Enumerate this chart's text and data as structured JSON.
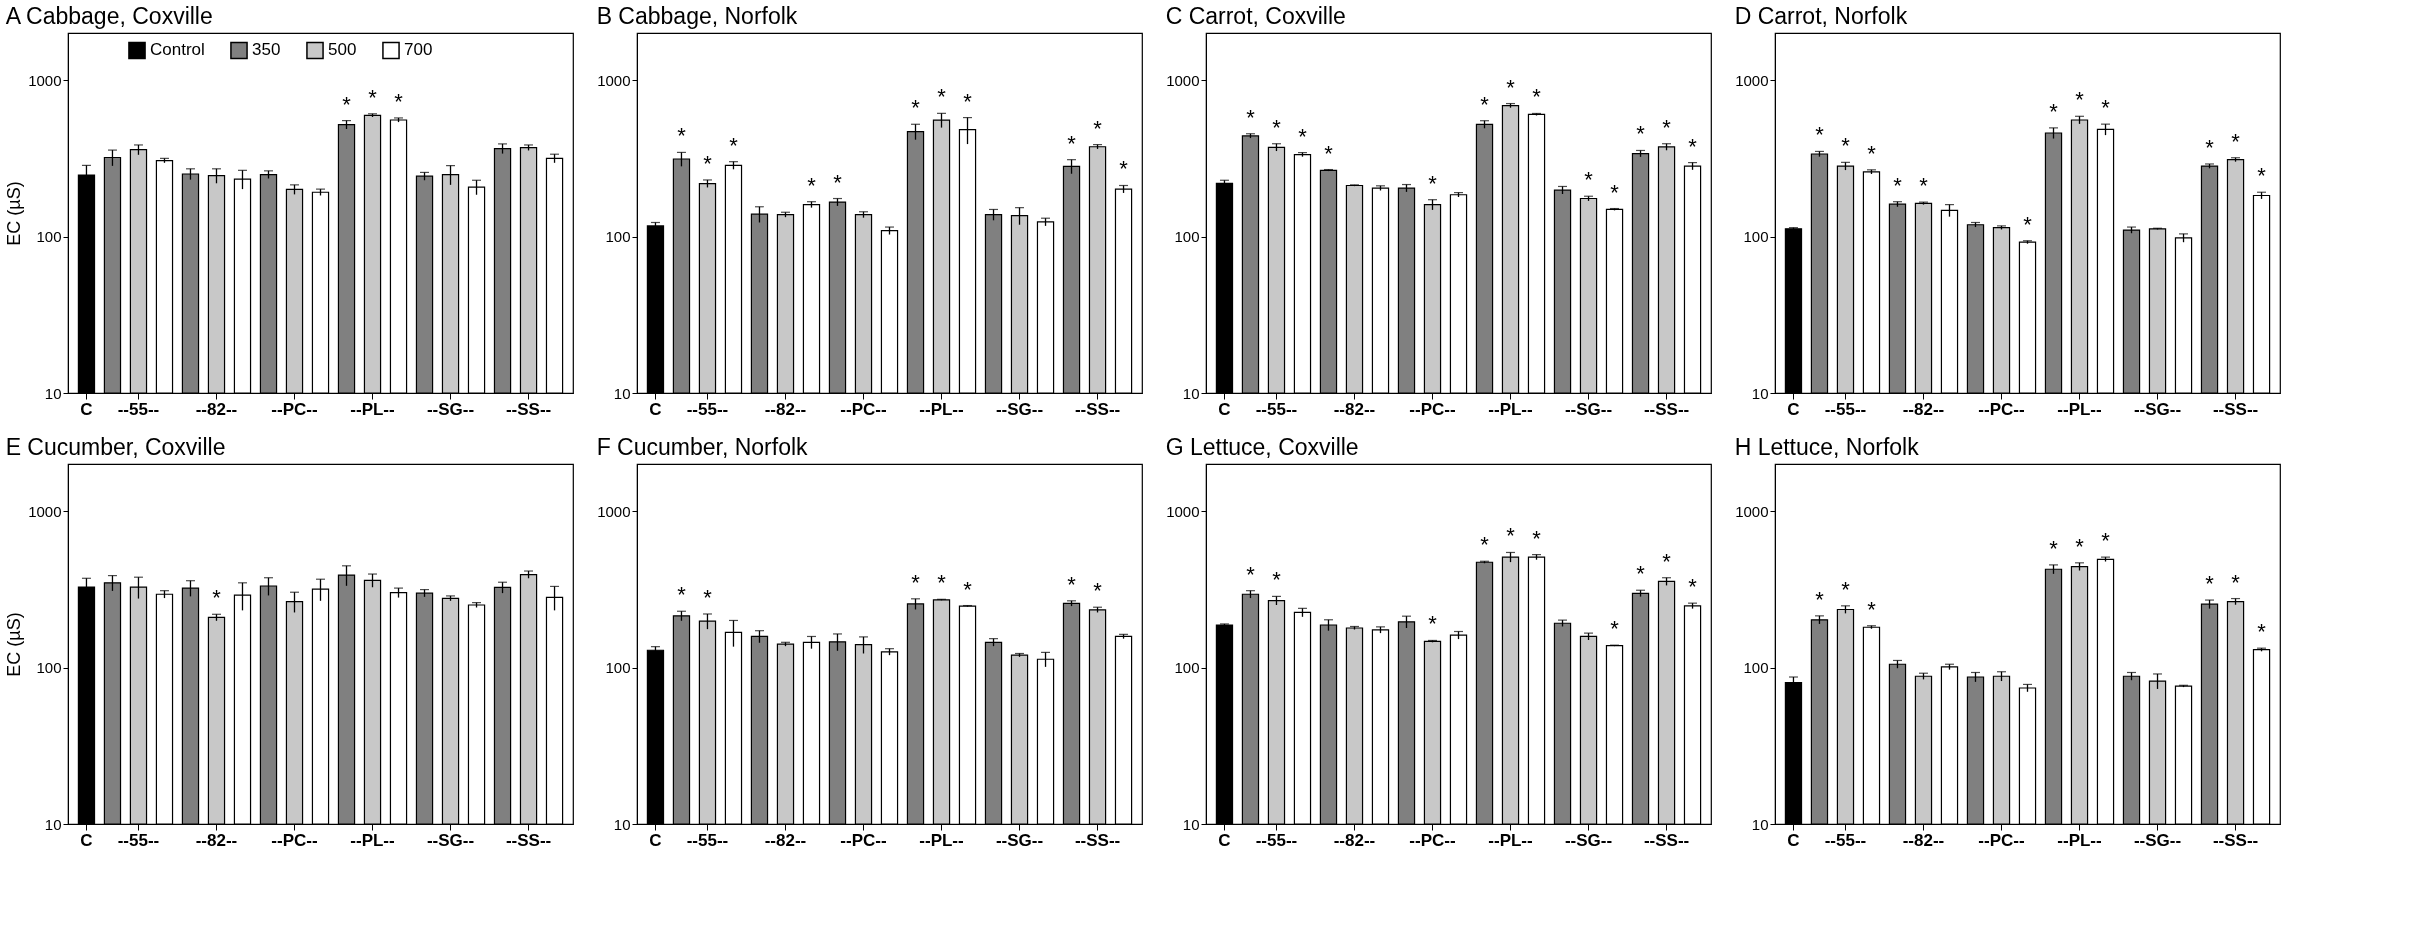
{
  "chart_data": [
    {
      "type": "bar",
      "title": "A Cabbage, Coxville",
      "ylabel": "EC (µS)",
      "log": true,
      "ylim": [
        10,
        2000
      ],
      "yticks": [
        10,
        100,
        1000
      ],
      "legend": "top",
      "categories": [
        "C",
        "--55--",
        "--82--",
        "--PC--",
        "--PL--",
        "--SG--",
        "--SS--"
      ],
      "series": [
        {
          "name": "Control",
          "color": "#000000",
          "values": [
            247,
            null,
            null,
            null,
            null,
            null,
            null
          ],
          "errors": [
            38,
            null,
            null,
            null,
            null,
            null,
            null
          ]
        },
        {
          "name": "350",
          "color": "#808080",
          "values": [
            null,
            320,
            251,
            249,
            519,
            243,
            365
          ],
          "errors": [
            null,
            37,
            20,
            14,
            32,
            14,
            26
          ],
          "value_labels": [
            null,
            null,
            null,
            null,
            "*",
            null,
            null
          ]
        },
        {
          "name": "500",
          "color": "#c8c8c8",
          "values": [
            null,
            359,
            245,
            200,
            595,
            249,
            370
          ],
          "errors": [
            null,
            26,
            26,
            14,
            14,
            35,
            15
          ],
          "value_labels": [
            null,
            null,
            null,
            null,
            "*",
            null,
            null
          ]
        },
        {
          "name": "700",
          "color": "#ffffff",
          "values": [
            null,
            306,
            233,
            192,
            556,
            207,
            316
          ],
          "errors": [
            null,
            10,
            32,
            9,
            17,
            22,
            20
          ],
          "value_labels": [
            null,
            null,
            null,
            null,
            "*",
            null,
            null
          ]
        }
      ]
    },
    {
      "type": "bar",
      "title": "B Cabbage, Norfolk",
      "log": true,
      "ylim": [
        10,
        2000
      ],
      "yticks": [
        10,
        100,
        1000
      ],
      "categories": [
        "C",
        "--55--",
        "--82--",
        "--PC--",
        "--PL--",
        "--SG--",
        "--SS--"
      ],
      "series": [
        {
          "color": "#000000",
          "values": [
            117,
            null,
            null,
            null,
            null,
            null,
            null
          ],
          "errors": [
            6,
            null,
            null,
            null,
            null,
            null,
            null
          ]
        },
        {
          "color": "#808080",
          "values": [
            null,
            313,
            139,
            166,
            469,
            138,
            281
          ],
          "errors": [
            null,
            32,
            16,
            9,
            53,
            11,
            29
          ],
          "value_labels": [
            null,
            "*",
            null,
            "*",
            "*",
            null,
            "*"
          ]
        },
        {
          "color": "#c8c8c8",
          "values": [
            null,
            218,
            138,
            138,
            555,
            136,
            375
          ],
          "errors": [
            null,
            12,
            5,
            6,
            58,
            17,
            12
          ],
          "value_labels": [
            null,
            "*",
            null,
            null,
            "*",
            null,
            "*"
          ]
        },
        {
          "color": "#ffffff",
          "values": [
            null,
            285,
            160,
            109,
            483,
            124,
            201
          ],
          "errors": [
            null,
            16,
            7,
            6,
            93,
            7,
            11
          ],
          "value_labels": [
            null,
            "*",
            "*",
            null,
            "*",
            null,
            "*"
          ]
        }
      ]
    },
    {
      "type": "bar",
      "title": "C Carrot, Coxville",
      "log": true,
      "ylim": [
        10,
        2000
      ],
      "yticks": [
        10,
        100,
        1000
      ],
      "categories": [
        "C",
        "--55--",
        "--82--",
        "--PC--",
        "--PL--",
        "--SG--",
        "--SS--"
      ],
      "series": [
        {
          "color": "#000000",
          "values": [
            219,
            null,
            null,
            null,
            null,
            null,
            null
          ],
          "errors": [
            10,
            null,
            null,
            null,
            null,
            null,
            null
          ]
        },
        {
          "color": "#808080",
          "values": [
            null,
            440,
            265,
            204,
            521,
            198,
            339
          ],
          "errors": [
            null,
            14,
            3,
            11,
            29,
            11,
            16
          ],
          "value_labels": [
            null,
            "*",
            "*",
            null,
            "*",
            null,
            "*"
          ]
        },
        {
          "color": "#c8c8c8",
          "values": [
            null,
            372,
            212,
            160,
            687,
            175,
            374
          ],
          "errors": [
            null,
            20,
            2,
            12,
            21,
            6,
            18
          ],
          "value_labels": [
            null,
            "*",
            null,
            "*",
            "*",
            "*",
            "*"
          ]
        },
        {
          "color": "#ffffff",
          "values": [
            null,
            334,
            204,
            185,
            603,
            149,
            282
          ],
          "errors": [
            null,
            10,
            7,
            6,
            9,
            2,
            15
          ],
          "value_labels": [
            null,
            "*",
            null,
            null,
            "*",
            "*",
            "*"
          ]
        }
      ]
    },
    {
      "type": "bar",
      "title": "D Carrot, Norfolk",
      "log": true,
      "ylim": [
        10,
        2000
      ],
      "yticks": [
        10,
        100,
        1000
      ],
      "categories": [
        "C",
        "--55--",
        "--82--",
        "--PC--",
        "--PL--",
        "--SG--",
        "--SS--"
      ],
      "series": [
        {
          "color": "#000000",
          "values": [
            112,
            null,
            null,
            null,
            null,
            null,
            null
          ],
          "errors": [
            2,
            null,
            null,
            null,
            null,
            null,
            null
          ]
        },
        {
          "color": "#808080",
          "values": [
            null,
            337,
            161,
            119,
            459,
            110,
            282
          ],
          "errors": [
            null,
            13,
            6,
            4,
            36,
            5,
            9
          ],
          "value_labels": [
            null,
            "*",
            "*",
            null,
            "*",
            null,
            "*"
          ]
        },
        {
          "color": "#c8c8c8",
          "values": [
            null,
            282,
            163,
            114,
            556,
            112,
            310
          ],
          "errors": [
            null,
            16,
            3,
            3,
            31,
            1,
            9
          ],
          "value_labels": [
            null,
            "*",
            "*",
            null,
            "*",
            null,
            "*"
          ]
        },
        {
          "color": "#ffffff",
          "values": [
            null,
            259,
            147,
            92,
            484,
            98,
            183
          ],
          "errors": [
            null,
            8,
            13,
            2,
            39,
            6,
            9
          ],
          "value_labels": [
            null,
            "*",
            null,
            "*",
            "*",
            null,
            "*"
          ]
        }
      ]
    },
    {
      "type": "bar",
      "title": "E Cucumber, Coxville",
      "ylabel": "EC (µS)",
      "log": true,
      "ylim": [
        10,
        2000
      ],
      "yticks": [
        10,
        100,
        1000
      ],
      "categories": [
        "C",
        "--55--",
        "--82--",
        "--PC--",
        "--PL--",
        "--SG--",
        "--SS--"
      ],
      "series": [
        {
          "color": "#000000",
          "values": [
            327,
            null,
            null,
            null,
            null,
            null,
            null
          ],
          "errors": [
            45,
            null,
            null,
            null,
            null,
            null,
            null
          ]
        },
        {
          "color": "#808080",
          "values": [
            null,
            348,
            322,
            332,
            390,
            299,
            325
          ],
          "errors": [
            null,
            39,
            37,
            43,
            57,
            16,
            26
          ]
        },
        {
          "color": "#c8c8c8",
          "values": [
            null,
            327,
            209,
            264,
            361,
            277,
            393
          ],
          "errors": [
            null,
            51,
            10,
            39,
            35,
            10,
            21
          ],
          "value_labels": [
            null,
            null,
            "*",
            null,
            null,
            null,
            null
          ]
        },
        {
          "color": "#ffffff",
          "values": [
            null,
            294,
            290,
            317,
            301,
            251,
            281
          ],
          "errors": [
            null,
            16,
            58,
            50,
            21,
            9,
            49
          ]
        }
      ]
    },
    {
      "type": "bar",
      "title": "F Cucumber, Norfolk",
      "log": true,
      "ylim": [
        10,
        2000
      ],
      "yticks": [
        10,
        100,
        1000
      ],
      "categories": [
        "C",
        "--55--",
        "--82--",
        "--PC--",
        "--PL--",
        "--SG--",
        "--SS--"
      ],
      "series": [
        {
          "color": "#000000",
          "values": [
            129,
            null,
            null,
            null,
            null,
            null,
            null
          ],
          "errors": [
            7,
            null,
            null,
            null,
            null,
            null,
            null
          ]
        },
        {
          "color": "#808080",
          "values": [
            null,
            214,
            158,
            146,
            255,
            145,
            257
          ],
          "errors": [
            null,
            15,
            14,
            18,
            20,
            8,
            10
          ],
          "value_labels": [
            null,
            "*",
            null,
            null,
            "*",
            null,
            "*"
          ]
        },
        {
          "color": "#c8c8c8",
          "values": [
            null,
            198,
            141,
            140,
            271,
            120,
            234
          ],
          "errors": [
            null,
            22,
            4,
            17,
            2,
            3,
            9
          ],
          "value_labels": [
            null,
            "*",
            null,
            null,
            "*",
            null,
            "*"
          ]
        },
        {
          "color": "#ffffff",
          "values": [
            null,
            168,
            145,
            126,
            247,
            113,
            158
          ],
          "errors": [
            null,
            32,
            13,
            6,
            2,
            12,
            5
          ],
          "value_labels": [
            null,
            null,
            null,
            null,
            "*",
            null,
            null
          ]
        }
      ]
    },
    {
      "type": "bar",
      "title": "G Lettuce, Coxville",
      "log": true,
      "ylim": [
        10,
        2000
      ],
      "yticks": [
        10,
        100,
        1000
      ],
      "categories": [
        "C",
        "--55--",
        "--82--",
        "--PC--",
        "--PL--",
        "--SG--",
        "--SS--"
      ],
      "series": [
        {
          "color": "#000000",
          "values": [
            187,
            null,
            null,
            null,
            null,
            null,
            null
          ],
          "errors": [
            3,
            null,
            null,
            null,
            null,
            null,
            null
          ]
        },
        {
          "color": "#808080",
          "values": [
            null,
            294,
            187,
            196,
            471,
            192,
            298
          ],
          "errors": [
            null,
            16,
            15,
            17,
            7,
            9,
            14
          ],
          "value_labels": [
            null,
            "*",
            null,
            null,
            "*",
            null,
            "*"
          ]
        },
        {
          "color": "#c8c8c8",
          "values": [
            null,
            268,
            179,
            147,
            508,
            158,
            355
          ],
          "errors": [
            null,
            17,
            4,
            2,
            36,
            8,
            20
          ],
          "value_labels": [
            null,
            "*",
            null,
            "*",
            "*",
            null,
            "*"
          ]
        },
        {
          "color": "#ffffff",
          "values": [
            null,
            225,
            174,
            161,
            508,
            138,
            248
          ],
          "errors": [
            null,
            14,
            8,
            9,
            19,
            1,
            10
          ],
          "value_labels": [
            null,
            null,
            null,
            null,
            "*",
            "*",
            "*"
          ]
        }
      ]
    },
    {
      "type": "bar",
      "title": "H Lettuce, Norfolk",
      "log": true,
      "ylim": [
        10,
        2000
      ],
      "yticks": [
        10,
        100,
        1000
      ],
      "categories": [
        "C",
        "--55--",
        "--82--",
        "--PC--",
        "--PL--",
        "--SG--",
        "--SS--"
      ],
      "series": [
        {
          "color": "#000000",
          "values": [
            80,
            null,
            null,
            null,
            null,
            null,
            null
          ],
          "errors": [
            7,
            null,
            null,
            null,
            null,
            null,
            null
          ]
        },
        {
          "color": "#808080",
          "values": [
            null,
            202,
            105,
            87,
            425,
            88,
            254
          ],
          "errors": [
            null,
            12,
            6,
            6,
            28,
            5,
            16
          ],
          "value_labels": [
            null,
            "*",
            null,
            null,
            "*",
            null,
            "*"
          ]
        },
        {
          "color": "#c8c8c8",
          "values": [
            null,
            235,
            88,
            88,
            442,
            82,
            264
          ],
          "errors": [
            null,
            13,
            4,
            6,
            25,
            9,
            12
          ],
          "value_labels": [
            null,
            "*",
            null,
            null,
            "*",
            null,
            "*"
          ]
        },
        {
          "color": "#ffffff",
          "values": [
            null,
            181,
            101,
            74,
            492,
            76,
            130
          ],
          "errors": [
            null,
            4,
            4,
            4,
            16,
            1,
            3
          ],
          "value_labels": [
            null,
            "*",
            null,
            null,
            "*",
            null,
            "*"
          ]
        }
      ]
    }
  ]
}
